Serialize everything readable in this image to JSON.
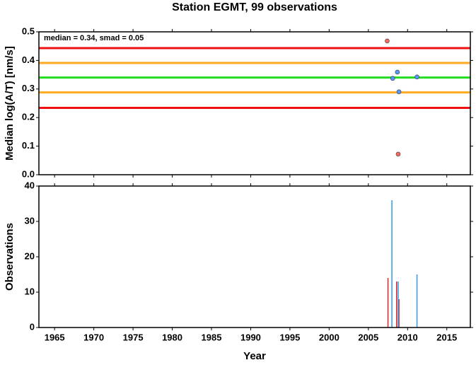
{
  "chart_data": [
    {
      "type": "scatter",
      "title": "Station EGMT, 99 observations",
      "ylabel": "Median log(A/T) [nm/s]",
      "annotation": "median = 0.34, smad = 0.05",
      "xlim": [
        1963,
        2018
      ],
      "xticks": [
        1965,
        1970,
        1975,
        1980,
        1985,
        1990,
        1995,
        2000,
        2005,
        2010,
        2015
      ],
      "ylim": [
        0,
        0.5
      ],
      "yticks": [
        {
          "value": 0,
          "label": "0.0"
        },
        0.1,
        0.2,
        0.3,
        0.4,
        0.5
      ],
      "hlines": [
        {
          "value": 0.443,
          "color": "#ee1111"
        },
        {
          "value": 0.391,
          "color": "#ffaa22"
        },
        {
          "value": 0.34,
          "color": "#22dd22"
        },
        {
          "value": 0.288,
          "color": "#ffaa22"
        },
        {
          "value": 0.234,
          "color": "#ee1111"
        }
      ],
      "series": [
        {
          "color": "#f46a5e",
          "x": [
            2007.4,
            2008.8
          ],
          "values": [
            0.468,
            0.072
          ]
        },
        {
          "color": "#5599ff",
          "x": [
            2008.7,
            2008.1,
            2011.2,
            2008.9
          ],
          "values": [
            0.359,
            0.337,
            0.342,
            0.29
          ]
        }
      ]
    },
    {
      "type": "bar",
      "xlabel": "Year",
      "ylabel": "Observations",
      "xlim": [
        1963,
        2018
      ],
      "xticks": [
        1965,
        1970,
        1975,
        1980,
        1985,
        1990,
        1995,
        2000,
        2005,
        2010,
        2015
      ],
      "ylim": [
        0,
        40
      ],
      "yticks": [
        0,
        10,
        20,
        30,
        40
      ],
      "series": [
        {
          "color": "#dd2222",
          "x": [
            2007.5,
            2008.6,
            2008.9
          ],
          "values": [
            14,
            13,
            8
          ]
        },
        {
          "color": "#3399ee",
          "x": [
            2008.0,
            2008.8,
            2011.2
          ],
          "values": [
            36,
            13,
            15
          ]
        }
      ]
    }
  ]
}
